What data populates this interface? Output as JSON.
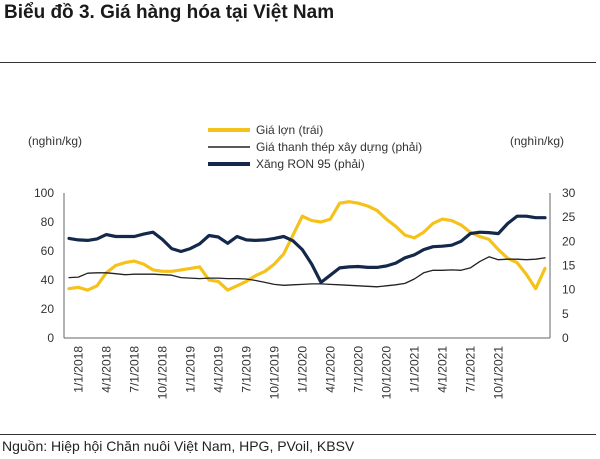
{
  "title": "Biểu đồ 3. Giá hàng hóa tại Việt Nam",
  "source": "Nguồn: Hiệp hội Chăn nuôi Việt Nam, HPG, PVoil, KBSV",
  "chart_data": {
    "type": "line",
    "left_unit": "(nghìn/kg)",
    "right_unit": "(nghìn/kg)",
    "left_ylim": [
      0,
      100
    ],
    "right_ylim": [
      0,
      30
    ],
    "left_ticks": [
      "0",
      "20",
      "40",
      "60",
      "80",
      "100"
    ],
    "right_ticks": [
      "0",
      "5",
      "10",
      "15",
      "20",
      "25",
      "30"
    ],
    "x_ticks": [
      "1/1/2018",
      "4/1/2018",
      "7/1/2018",
      "10/1/2018",
      "1/1/2019",
      "4/1/2019",
      "7/1/2019",
      "10/1/2019",
      "1/1/2020",
      "4/1/2020",
      "7/1/2020",
      "10/1/2020",
      "1/1/2021",
      "4/1/2021",
      "7/1/2021",
      "10/1/2021"
    ],
    "grid": false,
    "legend_position": "top-center",
    "series": [
      {
        "name": "Giá lợn (trái)",
        "axis": "left",
        "color": "#F5C21B",
        "values": [
          34,
          35,
          33,
          36,
          45,
          50,
          52,
          53,
          51,
          47,
          46,
          46,
          47,
          48,
          49,
          40,
          39,
          33,
          36,
          39,
          43,
          46,
          51,
          58,
          71,
          84,
          81,
          80,
          82,
          93,
          94,
          93,
          91,
          88,
          82,
          77,
          71,
          69,
          73,
          79,
          82,
          81,
          78,
          73,
          70,
          68,
          61,
          55,
          52,
          44,
          34,
          48
        ]
      },
      {
        "name": "Giá thanh thép xây dựng (phải)",
        "axis": "right",
        "color": "#222222",
        "values": [
          12.5,
          12.6,
          13.4,
          13.5,
          13.5,
          13.3,
          13.1,
          13.2,
          13.2,
          13.2,
          13.1,
          13.0,
          12.5,
          12.4,
          12.3,
          12.4,
          12.4,
          12.3,
          12.3,
          12.2,
          11.9,
          11.5,
          11.1,
          10.9,
          11.0,
          11.1,
          11.2,
          11.2,
          11.1,
          11.0,
          10.9,
          10.8,
          10.7,
          10.6,
          10.8,
          11.0,
          11.3,
          12.2,
          13.5,
          14.0,
          14.0,
          14.1,
          14.0,
          14.5,
          15.8,
          16.8,
          16.2,
          16.3,
          16.3,
          16.2,
          16.3,
          16.6
        ]
      },
      {
        "name": "Xăng RON 95 (phải)",
        "axis": "right",
        "color": "#14284B",
        "values": [
          20.6,
          20.3,
          20.2,
          20.5,
          21.4,
          21.0,
          21.0,
          21.0,
          21.5,
          21.9,
          20.4,
          18.5,
          17.9,
          18.5,
          19.5,
          21.2,
          20.9,
          19.6,
          21.0,
          20.3,
          20.2,
          20.3,
          20.6,
          21.0,
          20.1,
          18.3,
          15.3,
          11.5,
          13.0,
          14.5,
          14.7,
          14.8,
          14.6,
          14.6,
          14.9,
          15.5,
          16.6,
          17.2,
          18.3,
          18.9,
          19.0,
          19.2,
          20.0,
          21.6,
          21.9,
          21.8,
          21.6,
          23.7,
          25.2,
          25.2,
          24.9,
          24.9
        ]
      }
    ]
  }
}
